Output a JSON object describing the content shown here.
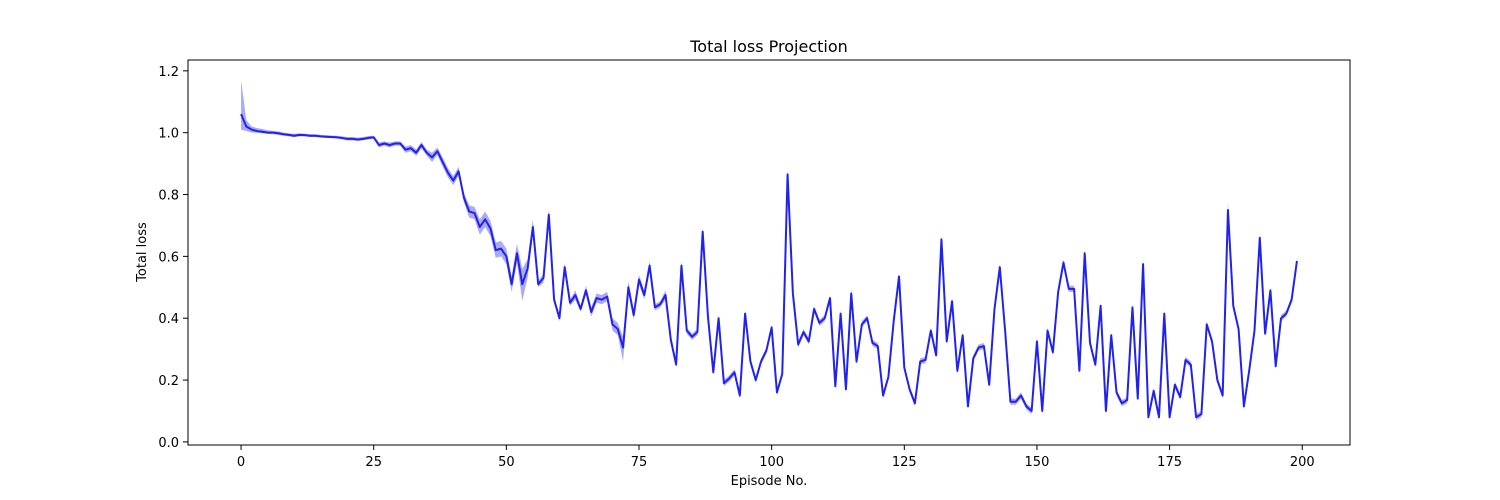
{
  "chart_data": {
    "type": "line",
    "title": "Total loss Projection",
    "xlabel": "Episode No.",
    "ylabel": "Total loss",
    "xlim": [
      -10,
      209
    ],
    "ylim": [
      -0.01,
      1.235
    ],
    "xticks": [
      0,
      25,
      50,
      75,
      100,
      125,
      150,
      175,
      200
    ],
    "yticks": [
      0.0,
      0.2,
      0.4,
      0.6,
      0.8,
      1.0,
      1.2
    ],
    "xtick_labels": [
      "0",
      "25",
      "50",
      "75",
      "100",
      "125",
      "150",
      "175",
      "200"
    ],
    "ytick_labels": [
      "0.0",
      "0.2",
      "0.4",
      "0.6",
      "0.8",
      "1.0",
      "1.2"
    ],
    "grid": false,
    "line_color": "#2222ee",
    "band_color": "#8888ee",
    "series": [
      {
        "x": [
          0,
          1,
          2,
          3,
          4,
          5,
          6,
          7,
          8,
          9,
          10,
          11,
          12,
          13,
          14,
          15,
          16,
          17,
          18,
          19,
          20,
          21,
          22,
          23,
          24,
          25,
          26,
          27,
          28,
          29,
          30,
          31,
          32,
          33,
          34,
          35,
          36,
          37,
          38,
          39,
          40,
          41,
          42,
          43,
          44,
          45,
          46,
          47,
          48,
          49,
          50,
          51,
          52,
          53,
          54,
          55,
          56,
          57,
          58,
          59,
          60,
          61,
          62,
          63,
          64,
          65,
          66,
          67,
          68,
          69,
          70,
          71,
          72,
          73,
          74,
          75,
          76,
          77,
          78,
          79,
          80,
          81,
          82,
          83,
          84,
          85,
          86,
          87,
          88,
          89,
          90,
          91,
          92,
          93,
          94,
          95,
          96,
          97,
          98,
          99,
          100,
          101,
          102,
          103,
          104,
          105,
          106,
          107,
          108,
          109,
          110,
          111,
          112,
          113,
          114,
          115,
          116,
          117,
          118,
          119,
          120,
          121,
          122,
          123,
          124,
          125,
          126,
          127,
          128,
          129,
          130,
          131,
          132,
          133,
          134,
          135,
          136,
          137,
          138,
          139,
          140,
          141,
          142,
          143,
          144,
          145,
          146,
          147,
          148,
          149,
          150,
          151,
          152,
          153,
          154,
          155,
          156,
          157,
          158,
          159,
          160,
          161,
          162,
          163,
          164,
          165,
          166,
          167,
          168,
          169,
          170,
          171,
          172,
          173,
          174,
          175,
          176,
          177,
          178,
          179,
          180,
          181,
          182,
          183,
          184,
          185,
          186,
          187,
          188,
          189,
          190,
          191,
          192,
          193,
          194,
          195,
          196,
          197,
          198,
          199
        ],
        "values": [
          1.06,
          1.02,
          1.01,
          1.005,
          1.003,
          1.0,
          1.0,
          0.998,
          0.995,
          0.993,
          0.99,
          0.993,
          0.992,
          0.99,
          0.99,
          0.988,
          0.987,
          0.986,
          0.985,
          0.983,
          0.98,
          0.98,
          0.978,
          0.98,
          0.983,
          0.985,
          0.96,
          0.965,
          0.96,
          0.965,
          0.965,
          0.945,
          0.95,
          0.935,
          0.96,
          0.935,
          0.92,
          0.94,
          0.905,
          0.87,
          0.845,
          0.875,
          0.79,
          0.745,
          0.74,
          0.695,
          0.72,
          0.69,
          0.62,
          0.625,
          0.6,
          0.51,
          0.61,
          0.51,
          0.56,
          0.695,
          0.51,
          0.53,
          0.735,
          0.46,
          0.4,
          0.565,
          0.45,
          0.475,
          0.43,
          0.49,
          0.42,
          0.465,
          0.46,
          0.47,
          0.38,
          0.365,
          0.305,
          0.5,
          0.41,
          0.525,
          0.475,
          0.57,
          0.435,
          0.445,
          0.475,
          0.33,
          0.25,
          0.57,
          0.36,
          0.34,
          0.355,
          0.68,
          0.405,
          0.225,
          0.4,
          0.19,
          0.205,
          0.225,
          0.15,
          0.415,
          0.26,
          0.2,
          0.26,
          0.295,
          0.37,
          0.16,
          0.22,
          0.865,
          0.48,
          0.315,
          0.355,
          0.325,
          0.43,
          0.385,
          0.4,
          0.465,
          0.18,
          0.415,
          0.17,
          0.48,
          0.26,
          0.38,
          0.4,
          0.32,
          0.31,
          0.15,
          0.21,
          0.39,
          0.535,
          0.24,
          0.17,
          0.125,
          0.26,
          0.265,
          0.36,
          0.28,
          0.655,
          0.325,
          0.455,
          0.23,
          0.345,
          0.115,
          0.27,
          0.305,
          0.31,
          0.185,
          0.43,
          0.565,
          0.36,
          0.13,
          0.13,
          0.15,
          0.115,
          0.1,
          0.325,
          0.1,
          0.36,
          0.29,
          0.485,
          0.58,
          0.495,
          0.495,
          0.23,
          0.61,
          0.32,
          0.25,
          0.44,
          0.1,
          0.345,
          0.16,
          0.125,
          0.135,
          0.435,
          0.14,
          0.575,
          0.08,
          0.165,
          0.08,
          0.415,
          0.08,
          0.185,
          0.145,
          0.265,
          0.25,
          0.08,
          0.09,
          0.38,
          0.325,
          0.2,
          0.15,
          0.75,
          0.44,
          0.365,
          0.115,
          0.23,
          0.36,
          0.66,
          0.35,
          0.49,
          0.245,
          0.4,
          0.415,
          0.46,
          0.585
        ],
        "lower": [
          1.01,
          1.005,
          1.0,
          1.0,
          0.998,
          0.996,
          0.995,
          0.993,
          0.99,
          0.988,
          0.985,
          0.988,
          0.988,
          0.986,
          0.986,
          0.984,
          0.983,
          0.982,
          0.981,
          0.978,
          0.975,
          0.975,
          0.973,
          0.975,
          0.978,
          0.98,
          0.952,
          0.958,
          0.952,
          0.958,
          0.958,
          0.935,
          0.94,
          0.925,
          0.95,
          0.925,
          0.905,
          0.928,
          0.89,
          0.855,
          0.83,
          0.86,
          0.775,
          0.725,
          0.72,
          0.67,
          0.695,
          0.665,
          0.595,
          0.6,
          0.575,
          0.485,
          0.58,
          0.455,
          0.53,
          0.67,
          0.5,
          0.515,
          0.72,
          0.45,
          0.39,
          0.55,
          0.44,
          0.46,
          0.42,
          0.475,
          0.405,
          0.45,
          0.445,
          0.455,
          0.36,
          0.345,
          0.26,
          0.48,
          0.395,
          0.51,
          0.46,
          0.555,
          0.425,
          0.435,
          0.46,
          0.32,
          0.24,
          0.555,
          0.35,
          0.33,
          0.345,
          0.67,
          0.395,
          0.215,
          0.39,
          0.18,
          0.195,
          0.215,
          0.14,
          0.405,
          0.25,
          0.19,
          0.25,
          0.285,
          0.36,
          0.15,
          0.21,
          0.855,
          0.47,
          0.305,
          0.345,
          0.315,
          0.42,
          0.375,
          0.39,
          0.455,
          0.17,
          0.405,
          0.16,
          0.465,
          0.25,
          0.37,
          0.39,
          0.31,
          0.3,
          0.14,
          0.2,
          0.38,
          0.525,
          0.23,
          0.16,
          0.115,
          0.25,
          0.255,
          0.35,
          0.27,
          0.645,
          0.315,
          0.445,
          0.22,
          0.335,
          0.105,
          0.26,
          0.295,
          0.3,
          0.175,
          0.42,
          0.555,
          0.35,
          0.12,
          0.12,
          0.14,
          0.105,
          0.09,
          0.315,
          0.09,
          0.35,
          0.28,
          0.475,
          0.57,
          0.485,
          0.485,
          0.22,
          0.6,
          0.31,
          0.24,
          0.43,
          0.09,
          0.335,
          0.15,
          0.115,
          0.125,
          0.425,
          0.13,
          0.565,
          0.07,
          0.155,
          0.07,
          0.405,
          0.07,
          0.175,
          0.135,
          0.255,
          0.24,
          0.07,
          0.08,
          0.37,
          0.315,
          0.19,
          0.14,
          0.74,
          0.43,
          0.355,
          0.105,
          0.22,
          0.35,
          0.65,
          0.34,
          0.48,
          0.235,
          0.39,
          0.405,
          0.45,
          0.575
        ],
        "upper": [
          1.17,
          1.04,
          1.02,
          1.015,
          1.012,
          1.008,
          1.006,
          1.004,
          1.0,
          0.998,
          0.996,
          0.998,
          0.997,
          0.995,
          0.995,
          0.993,
          0.992,
          0.991,
          0.99,
          0.988,
          0.986,
          0.986,
          0.984,
          0.986,
          0.989,
          0.99,
          0.968,
          0.972,
          0.968,
          0.972,
          0.972,
          0.955,
          0.96,
          0.945,
          0.97,
          0.945,
          0.935,
          0.952,
          0.92,
          0.885,
          0.86,
          0.89,
          0.805,
          0.765,
          0.76,
          0.72,
          0.745,
          0.715,
          0.645,
          0.65,
          0.625,
          0.535,
          0.64,
          0.56,
          0.59,
          0.72,
          0.52,
          0.545,
          0.75,
          0.47,
          0.41,
          0.58,
          0.46,
          0.49,
          0.44,
          0.505,
          0.435,
          0.48,
          0.475,
          0.485,
          0.4,
          0.385,
          0.34,
          0.52,
          0.425,
          0.54,
          0.49,
          0.585,
          0.445,
          0.455,
          0.49,
          0.34,
          0.26,
          0.585,
          0.37,
          0.35,
          0.365,
          0.69,
          0.415,
          0.235,
          0.41,
          0.2,
          0.215,
          0.235,
          0.16,
          0.425,
          0.27,
          0.21,
          0.27,
          0.305,
          0.38,
          0.17,
          0.23,
          0.875,
          0.49,
          0.325,
          0.365,
          0.335,
          0.44,
          0.395,
          0.41,
          0.475,
          0.19,
          0.425,
          0.18,
          0.495,
          0.27,
          0.39,
          0.41,
          0.33,
          0.32,
          0.16,
          0.22,
          0.4,
          0.545,
          0.25,
          0.18,
          0.135,
          0.27,
          0.275,
          0.37,
          0.29,
          0.665,
          0.335,
          0.465,
          0.24,
          0.355,
          0.125,
          0.28,
          0.315,
          0.32,
          0.195,
          0.44,
          0.575,
          0.37,
          0.14,
          0.14,
          0.16,
          0.125,
          0.11,
          0.335,
          0.11,
          0.37,
          0.3,
          0.495,
          0.59,
          0.505,
          0.505,
          0.24,
          0.62,
          0.33,
          0.26,
          0.45,
          0.11,
          0.355,
          0.17,
          0.135,
          0.145,
          0.445,
          0.15,
          0.585,
          0.09,
          0.175,
          0.09,
          0.425,
          0.09,
          0.195,
          0.155,
          0.275,
          0.26,
          0.09,
          0.1,
          0.39,
          0.335,
          0.21,
          0.16,
          0.775,
          0.45,
          0.375,
          0.125,
          0.24,
          0.37,
          0.67,
          0.36,
          0.5,
          0.255,
          0.41,
          0.425,
          0.47,
          0.595
        ]
      }
    ]
  }
}
